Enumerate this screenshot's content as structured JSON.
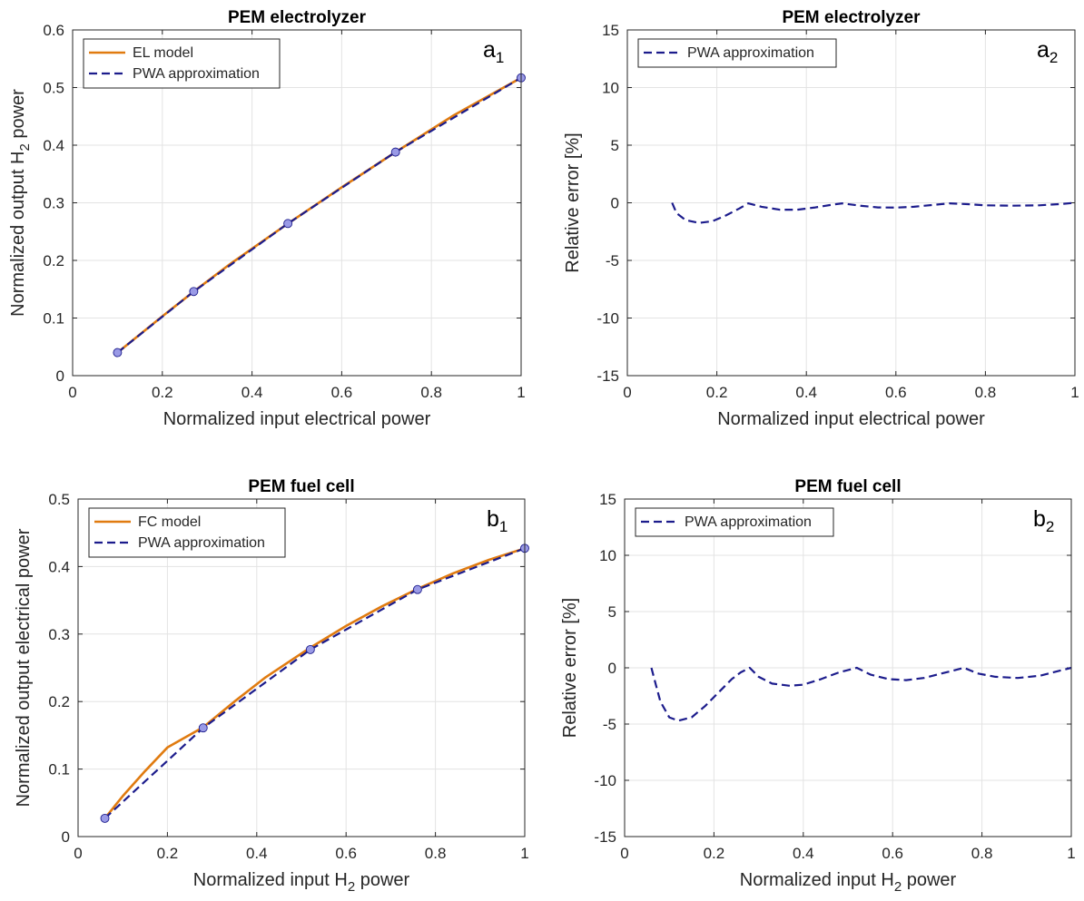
{
  "figure": {
    "panels": [
      "a1",
      "a2",
      "b1",
      "b2"
    ]
  },
  "chart_data": [
    {
      "id": "a1",
      "type": "line",
      "title": "PEM electrolyzer",
      "corner_label": {
        "main": "a",
        "sub": "1"
      },
      "xlabel": {
        "main": "Normalized input electrical power",
        "sub": "",
        "tail": ""
      },
      "ylabel": {
        "main": "Normalized output H",
        "sub": "2",
        "tail": " power"
      },
      "xlim": [
        0,
        1
      ],
      "ylim": [
        0,
        0.6
      ],
      "xticks": [
        0,
        0.2,
        0.4,
        0.6,
        0.8,
        1
      ],
      "xtick_labels": [
        "0",
        "0.2",
        "0.4",
        "0.6",
        "0.8",
        "1"
      ],
      "yticks": [
        0,
        0.1,
        0.2,
        0.3,
        0.4,
        0.5,
        0.6
      ],
      "ytick_labels": [
        "0",
        "0.1",
        "0.2",
        "0.3",
        "0.4",
        "0.5",
        "0.6"
      ],
      "grid": true,
      "legend_position": "top-left",
      "series": [
        {
          "name": "EL model",
          "style": "solid",
          "color": "#E07B10",
          "x": [
            0.1,
            0.2,
            0.27,
            0.35,
            0.48,
            0.6,
            0.72,
            0.85,
            1.0
          ],
          "y": [
            0.04,
            0.103,
            0.146,
            0.193,
            0.264,
            0.327,
            0.388,
            0.452,
            0.517
          ]
        },
        {
          "name": "PWA approximation",
          "style": "dashed",
          "color": "#1C1C8C",
          "x": [
            0.1,
            0.27,
            0.48,
            0.72,
            1.0
          ],
          "y": [
            0.04,
            0.146,
            0.264,
            0.388,
            0.517
          ]
        }
      ],
      "breakpoints": {
        "color": "#9A9AE6",
        "x": [
          0.1,
          0.27,
          0.48,
          0.72,
          1.0
        ],
        "y": [
          0.04,
          0.146,
          0.264,
          0.388,
          0.517
        ]
      }
    },
    {
      "id": "a2",
      "type": "line",
      "title": "PEM electrolyzer",
      "corner_label": {
        "main": "a",
        "sub": "2"
      },
      "xlabel": {
        "main": "Normalized input electrical power",
        "sub": "",
        "tail": ""
      },
      "ylabel": {
        "main": "Relative error [%]",
        "sub": "",
        "tail": ""
      },
      "xlim": [
        0,
        1
      ],
      "ylim": [
        -15,
        15
      ],
      "xticks": [
        0,
        0.2,
        0.4,
        0.6,
        0.8,
        1
      ],
      "xtick_labels": [
        "0",
        "0.2",
        "0.4",
        "0.6",
        "0.8",
        "1"
      ],
      "yticks": [
        -15,
        -10,
        -5,
        0,
        5,
        10,
        15
      ],
      "ytick_labels": [
        "-15",
        "-10",
        "-5",
        "0",
        "5",
        "10",
        "15"
      ],
      "grid": true,
      "legend_position": "top-left",
      "series": [
        {
          "name": "PWA approximation",
          "style": "dashed",
          "color": "#1C1C8C",
          "x": [
            0.1,
            0.11,
            0.13,
            0.16,
            0.19,
            0.22,
            0.25,
            0.27,
            0.3,
            0.34,
            0.38,
            0.42,
            0.46,
            0.48,
            0.52,
            0.56,
            0.6,
            0.64,
            0.68,
            0.72,
            0.76,
            0.8,
            0.86,
            0.92,
            0.97,
            1.0
          ],
          "y": [
            0,
            -0.9,
            -1.5,
            -1.75,
            -1.6,
            -1.1,
            -0.5,
            -0.05,
            -0.35,
            -0.6,
            -0.6,
            -0.4,
            -0.15,
            -0.05,
            -0.25,
            -0.4,
            -0.42,
            -0.35,
            -0.2,
            -0.05,
            -0.12,
            -0.22,
            -0.25,
            -0.22,
            -0.1,
            0
          ]
        }
      ]
    },
    {
      "id": "b1",
      "type": "line",
      "title": "PEM fuel cell",
      "corner_label": {
        "main": "b",
        "sub": "1"
      },
      "xlabel": {
        "main": "Normalized input H",
        "sub": "2",
        "tail": " power"
      },
      "ylabel": {
        "main": "Normalized output electrical power",
        "sub": "",
        "tail": ""
      },
      "xlim": [
        0,
        1
      ],
      "ylim": [
        0,
        0.5
      ],
      "xticks": [
        0,
        0.2,
        0.4,
        0.6,
        0.8,
        1
      ],
      "xtick_labels": [
        "0",
        "0.2",
        "0.4",
        "0.6",
        "0.8",
        "1"
      ],
      "yticks": [
        0,
        0.1,
        0.2,
        0.3,
        0.4,
        0.5
      ],
      "ytick_labels": [
        "0",
        "0.1",
        "0.2",
        "0.3",
        "0.4",
        "0.5"
      ],
      "grid": true,
      "legend_position": "top-left",
      "series": [
        {
          "name": "FC model",
          "style": "solid",
          "color": "#E07B10",
          "x": [
            0.06,
            0.1,
            0.15,
            0.2,
            0.28,
            0.35,
            0.42,
            0.52,
            0.6,
            0.68,
            0.76,
            0.84,
            0.92,
            1.0
          ],
          "y": [
            0.027,
            0.06,
            0.097,
            0.132,
            0.162,
            0.2,
            0.236,
            0.28,
            0.312,
            0.341,
            0.367,
            0.39,
            0.41,
            0.427
          ]
        },
        {
          "name": "PWA approximation",
          "style": "dashed",
          "color": "#1C1C8C",
          "x": [
            0.06,
            0.28,
            0.52,
            0.76,
            1.0
          ],
          "y": [
            0.027,
            0.161,
            0.277,
            0.366,
            0.427
          ]
        }
      ],
      "breakpoints": {
        "color": "#9A9AE6",
        "x": [
          0.06,
          0.28,
          0.52,
          0.76,
          1.0
        ],
        "y": [
          0.027,
          0.161,
          0.277,
          0.366,
          0.427
        ]
      }
    },
    {
      "id": "b2",
      "type": "line",
      "title": "PEM fuel cell",
      "corner_label": {
        "main": "b",
        "sub": "2"
      },
      "xlabel": {
        "main": "Normalized input H",
        "sub": "2",
        "tail": " power"
      },
      "ylabel": {
        "main": "Relative error [%]",
        "sub": "",
        "tail": ""
      },
      "xlim": [
        0,
        1
      ],
      "ylim": [
        -15,
        15
      ],
      "xticks": [
        0,
        0.2,
        0.4,
        0.6,
        0.8,
        1
      ],
      "xtick_labels": [
        "0",
        "0.2",
        "0.4",
        "0.6",
        "0.8",
        "1"
      ],
      "yticks": [
        -15,
        -10,
        -5,
        0,
        5,
        10,
        15
      ],
      "ytick_labels": [
        "-15",
        "-10",
        "-5",
        "0",
        "5",
        "10",
        "15"
      ],
      "grid": true,
      "legend_position": "top-left",
      "series": [
        {
          "name": "PWA approximation",
          "style": "dashed",
          "color": "#1C1C8C",
          "x": [
            0.06,
            0.07,
            0.08,
            0.1,
            0.12,
            0.15,
            0.18,
            0.21,
            0.24,
            0.26,
            0.28,
            0.3,
            0.33,
            0.37,
            0.4,
            0.44,
            0.48,
            0.52,
            0.55,
            0.59,
            0.63,
            0.67,
            0.71,
            0.76,
            0.79,
            0.83,
            0.88,
            0.93,
            0.97,
            1.0
          ],
          "y": [
            0,
            -1.5,
            -3.0,
            -4.4,
            -4.7,
            -4.4,
            -3.4,
            -2.2,
            -1.0,
            -0.4,
            0,
            -0.8,
            -1.4,
            -1.6,
            -1.5,
            -1.0,
            -0.4,
            0,
            -0.6,
            -1.0,
            -1.1,
            -0.9,
            -0.5,
            0,
            -0.5,
            -0.8,
            -0.9,
            -0.7,
            -0.3,
            0
          ]
        }
      ]
    }
  ]
}
